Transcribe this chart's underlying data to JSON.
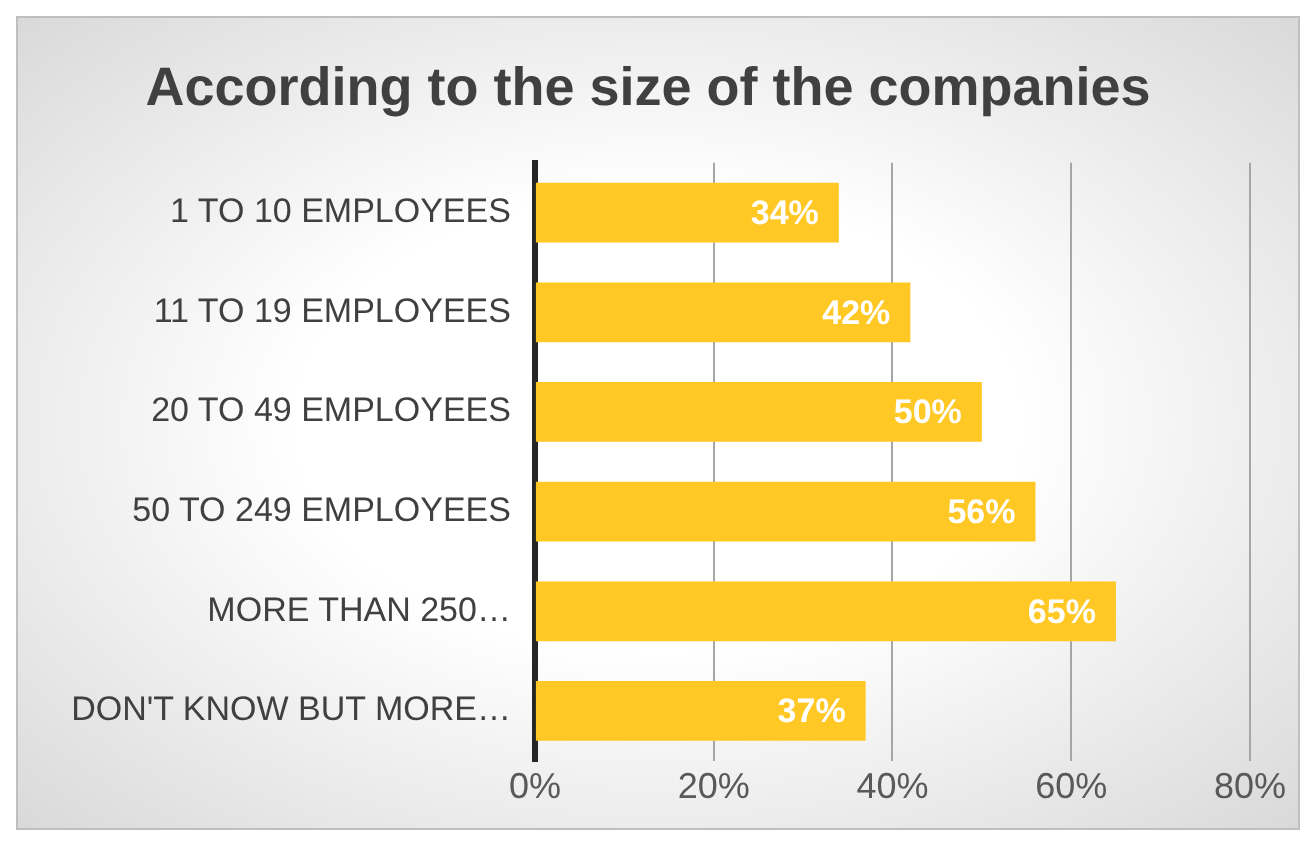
{
  "chart_data": {
    "type": "bar",
    "orientation": "horizontal",
    "title": "According to the size of the companies",
    "categories": [
      "1 TO 10 EMPLOYEES",
      "11 TO 19 EMPLOYEES",
      "20 TO 49 EMPLOYEES",
      "50 TO 249 EMPLOYEES",
      "MORE THAN 250…",
      "DON'T KNOW BUT MORE…"
    ],
    "values": [
      34,
      42,
      50,
      56,
      65,
      37
    ],
    "value_labels": [
      "34%",
      "42%",
      "50%",
      "56%",
      "65%",
      "37%"
    ],
    "color": "#ffc825",
    "xlim": [
      0,
      80
    ],
    "xticks": [
      {
        "value": 0,
        "label": "0%"
      },
      {
        "value": 20,
        "label": "20%"
      },
      {
        "value": 40,
        "label": "40%"
      },
      {
        "value": 60,
        "label": "60%"
      },
      {
        "value": 80,
        "label": "80%"
      }
    ],
    "grid": "x",
    "legend": false
  }
}
